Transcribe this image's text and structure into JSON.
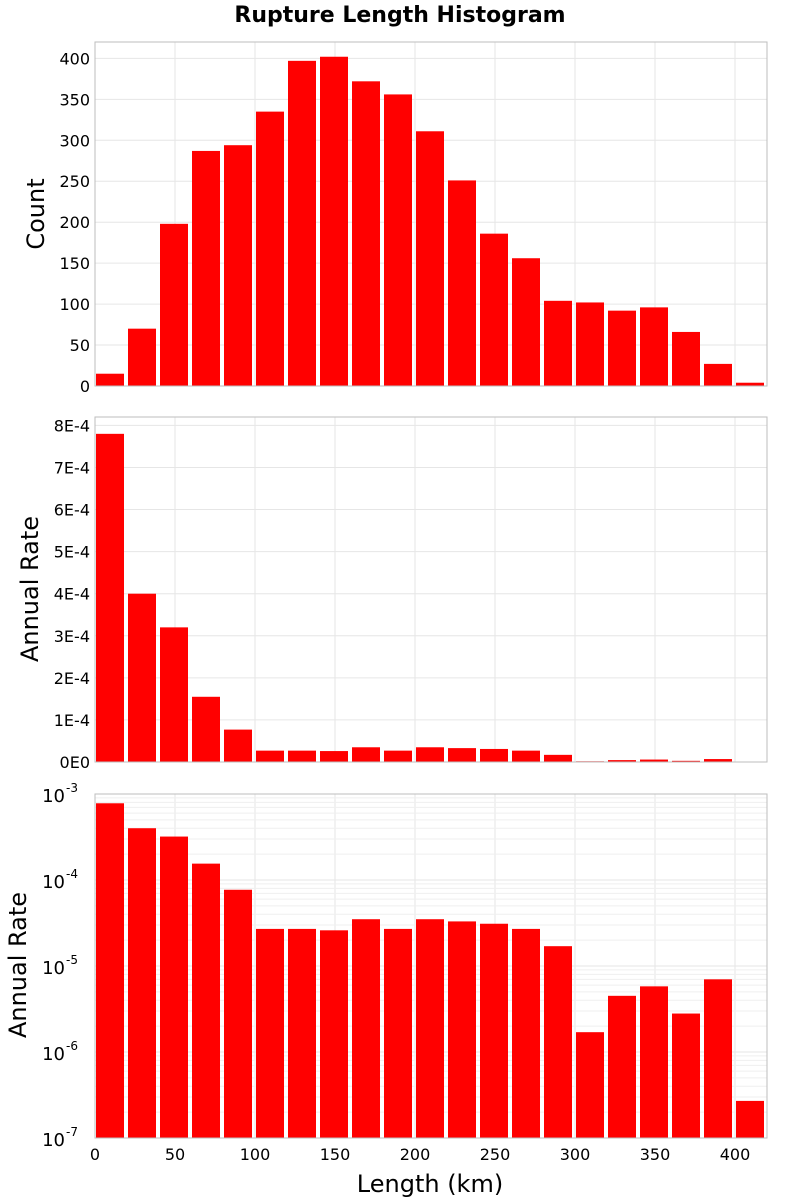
{
  "chart_data": [
    {
      "type": "bar",
      "title": "Rupture Length Histogram",
      "ylabel": "Count",
      "xlabel": "",
      "bin_width": 20,
      "x": [
        10,
        30,
        50,
        70,
        90,
        110,
        130,
        150,
        170,
        190,
        210,
        230,
        250,
        270,
        290,
        310,
        330,
        350,
        370,
        390,
        410
      ],
      "values": [
        15,
        70,
        198,
        287,
        294,
        335,
        397,
        402,
        372,
        356,
        311,
        251,
        186,
        156,
        104,
        102,
        92,
        96,
        66,
        27,
        4
      ],
      "xlim": [
        0,
        420
      ],
      "ylim": [
        0,
        420
      ],
      "yscale": "linear",
      "yticks": [
        0,
        50,
        100,
        150,
        200,
        250,
        300,
        350,
        400
      ],
      "ytick_labels": [
        "0",
        "50",
        "100",
        "150",
        "200",
        "250",
        "300",
        "350",
        "400"
      ],
      "color": "#ff0000",
      "grid": true
    },
    {
      "type": "bar",
      "title": "",
      "ylabel": "Annual Rate",
      "xlabel": "",
      "bin_width": 20,
      "x": [
        10,
        30,
        50,
        70,
        90,
        110,
        130,
        150,
        170,
        190,
        210,
        230,
        250,
        270,
        290,
        310,
        330,
        350,
        370,
        390,
        410
      ],
      "values": [
        0.00078,
        0.0004,
        0.00032,
        0.000155,
        7.7e-05,
        2.7e-05,
        2.7e-05,
        2.6e-05,
        3.5e-05,
        2.7e-05,
        3.5e-05,
        3.3e-05,
        3.1e-05,
        2.7e-05,
        1.7e-05,
        1.7e-06,
        4.5e-06,
        5.8e-06,
        2.8e-06,
        7e-06,
        2.7e-07
      ],
      "xlim": [
        0,
        420
      ],
      "ylim": [
        0,
        0.00082
      ],
      "yscale": "linear",
      "yticks": [
        0,
        0.0001,
        0.0002,
        0.0003,
        0.0004,
        0.0005,
        0.0006,
        0.0007,
        0.0008
      ],
      "ytick_labels": [
        "0E0",
        "1E-4",
        "2E-4",
        "3E-4",
        "4E-4",
        "5E-4",
        "6E-4",
        "7E-4",
        "8E-4"
      ],
      "color": "#ff0000",
      "grid": true
    },
    {
      "type": "bar",
      "title": "",
      "ylabel": "Annual Rate",
      "xlabel": "Length (km)",
      "bin_width": 20,
      "x": [
        10,
        30,
        50,
        70,
        90,
        110,
        130,
        150,
        170,
        190,
        210,
        230,
        250,
        270,
        290,
        310,
        330,
        350,
        370,
        390,
        410
      ],
      "values": [
        0.00078,
        0.0004,
        0.00032,
        0.000155,
        7.7e-05,
        2.7e-05,
        2.7e-05,
        2.6e-05,
        3.5e-05,
        2.7e-05,
        3.5e-05,
        3.3e-05,
        3.1e-05,
        2.7e-05,
        1.7e-05,
        1.7e-06,
        4.5e-06,
        5.8e-06,
        2.8e-06,
        7e-06,
        2.7e-07
      ],
      "xlim": [
        0,
        420
      ],
      "ylim": [
        1e-07,
        0.001
      ],
      "yscale": "log",
      "yticks": [
        1e-07,
        1e-06,
        1e-05,
        0.0001,
        0.001
      ],
      "ytick_labels": [
        {
          "base": "10",
          "exp": "-7"
        },
        {
          "base": "10",
          "exp": "-6"
        },
        {
          "base": "10",
          "exp": "-5"
        },
        {
          "base": "10",
          "exp": "-4"
        },
        {
          "base": "10",
          "exp": "-3"
        }
      ],
      "xticks": [
        0,
        50,
        100,
        150,
        200,
        250,
        300,
        350,
        400
      ],
      "xtick_labels": [
        "0",
        "50",
        "100",
        "150",
        "200",
        "250",
        "300",
        "350",
        "400"
      ],
      "color": "#ff0000",
      "grid": true
    }
  ]
}
